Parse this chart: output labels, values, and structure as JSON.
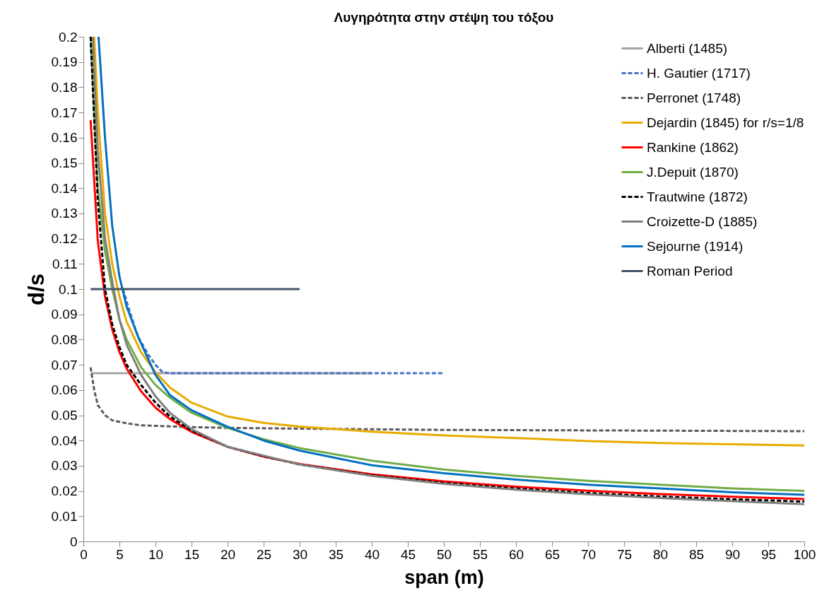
{
  "chart_data": {
    "type": "line",
    "title": "Λυγηρότητα στην στέψη του τόξου",
    "xlabel": "span (m)",
    "ylabel": "d/s",
    "xlim": [
      0,
      100
    ],
    "xticks": [
      0,
      5,
      10,
      15,
      20,
      25,
      30,
      35,
      40,
      45,
      50,
      55,
      60,
      65,
      70,
      75,
      80,
      85,
      90,
      95,
      100
    ],
    "ylim": [
      0,
      0.2
    ],
    "yticks": [
      0,
      0.01,
      0.02,
      0.03,
      0.04,
      0.05,
      0.06,
      0.07,
      0.08,
      0.09,
      0.1,
      0.11,
      0.12,
      0.13,
      0.14,
      0.15,
      0.16,
      0.17,
      0.18,
      0.19,
      0.2
    ],
    "grid": false,
    "legend": "top right",
    "marker": "none",
    "series": [
      {
        "name": "Alberti (1485)",
        "color": "#a5a5a5",
        "line_style": "solid",
        "x": [
          1,
          40
        ],
        "values": [
          0.0667,
          0.0667
        ]
      },
      {
        "name": "H. Gautier (1717)",
        "color": "#4472c4",
        "line_style": "dashed",
        "x": [
          5.5,
          6,
          7,
          7.6,
          9,
          10,
          11,
          12,
          50
        ],
        "values": [
          0.1,
          0.095,
          0.086,
          0.081,
          0.074,
          0.07,
          0.067,
          0.0667,
          0.0667
        ]
      },
      {
        "name": "Perronet (1748)",
        "color": "#595959",
        "line_style": "dashed",
        "x": [
          1,
          1.5,
          2,
          3,
          4,
          6,
          8,
          10,
          15,
          20,
          30,
          50,
          70,
          100
        ],
        "values": [
          0.069,
          0.06,
          0.054,
          0.05,
          0.048,
          0.0468,
          0.046,
          0.0458,
          0.0453,
          0.045,
          0.0447,
          0.0442,
          0.044,
          0.0437
        ]
      },
      {
        "name": "Dejardin (1845) for r/s=1/8",
        "color": "#e8ab00",
        "line_style": "solid",
        "x": [
          1.5,
          2,
          3,
          4,
          5,
          6,
          8,
          10,
          12,
          15,
          20,
          25,
          30,
          40,
          50,
          60,
          70,
          80,
          90,
          100
        ],
        "values": [
          0.2,
          0.17,
          0.13,
          0.11,
          0.097,
          0.087,
          0.075,
          0.067,
          0.061,
          0.055,
          0.0495,
          0.047,
          0.0455,
          0.0435,
          0.042,
          0.041,
          0.0398,
          0.039,
          0.0385,
          0.038
        ]
      },
      {
        "name": "Rankine (1862)",
        "color": "#ff0000",
        "line_style": "solid",
        "x": [
          1,
          2,
          3,
          4,
          5,
          6,
          8,
          10,
          12,
          15,
          20,
          25,
          30,
          40,
          50,
          60,
          70,
          80,
          90,
          100
        ],
        "values": [
          0.167,
          0.119,
          0.097,
          0.084,
          0.075,
          0.0685,
          0.0595,
          0.053,
          0.0485,
          0.0434,
          0.0375,
          0.0336,
          0.0307,
          0.0266,
          0.0238,
          0.0217,
          0.0201,
          0.0188,
          0.0177,
          0.0168
        ]
      },
      {
        "name": "J.Depuit (1870)",
        "color": "#70ad47",
        "line_style": "solid",
        "x": [
          1,
          2,
          3,
          4,
          5,
          6,
          8,
          10,
          12,
          15,
          20,
          25,
          30,
          40,
          50,
          60,
          70,
          80,
          90,
          100
        ],
        "values": [
          0.2,
          0.14,
          0.115,
          0.1,
          0.088,
          0.08,
          0.069,
          0.062,
          0.057,
          0.051,
          0.045,
          0.0405,
          0.037,
          0.032,
          0.0285,
          0.026,
          0.024,
          0.0225,
          0.021,
          0.02
        ]
      },
      {
        "name": "Trautwine (1872)",
        "color": "#000000",
        "line_style": "dashed",
        "x": [
          1,
          2,
          3,
          4,
          5,
          6,
          8,
          10,
          12,
          15,
          20,
          25,
          30,
          40,
          50,
          60,
          70,
          80,
          90,
          100
        ],
        "values": [
          0.2,
          0.135,
          0.1,
          0.086,
          0.077,
          0.07,
          0.062,
          0.055,
          0.0495,
          0.044,
          0.0375,
          0.0338,
          0.0305,
          0.0262,
          0.0232,
          0.021,
          0.0192,
          0.0178,
          0.0167,
          0.0158
        ]
      },
      {
        "name": "Croizette-D (1885)",
        "color": "#7f7f7f",
        "line_style": "solid",
        "x": [
          1.3,
          2,
          3,
          4,
          5,
          6,
          8,
          10,
          12,
          15,
          20,
          25,
          30,
          40,
          50,
          60,
          70,
          80,
          90,
          100
        ],
        "values": [
          0.2,
          0.155,
          0.12,
          0.103,
          0.088,
          0.078,
          0.066,
          0.0575,
          0.051,
          0.0445,
          0.0375,
          0.034,
          0.0305,
          0.026,
          0.0228,
          0.0205,
          0.0187,
          0.0172,
          0.016,
          0.0148
        ]
      },
      {
        "name": "Sejourne (1914)",
        "color": "#0070c0",
        "line_style": "solid",
        "x": [
          2.1,
          3,
          4,
          5,
          6,
          7.6,
          10,
          12,
          15,
          20,
          25,
          30,
          40,
          50,
          60,
          70,
          80,
          90,
          100
        ],
        "values": [
          0.2,
          0.16,
          0.125,
          0.105,
          0.093,
          0.081,
          0.066,
          0.058,
          0.052,
          0.0454,
          0.04,
          0.036,
          0.0302,
          0.027,
          0.0245,
          0.0225,
          0.021,
          0.0195,
          0.0185
        ]
      },
      {
        "name": "Roman Period",
        "color": "#44546a",
        "line_style": "solid",
        "x": [
          1,
          30
        ],
        "values": [
          0.1,
          0.1
        ]
      }
    ]
  }
}
